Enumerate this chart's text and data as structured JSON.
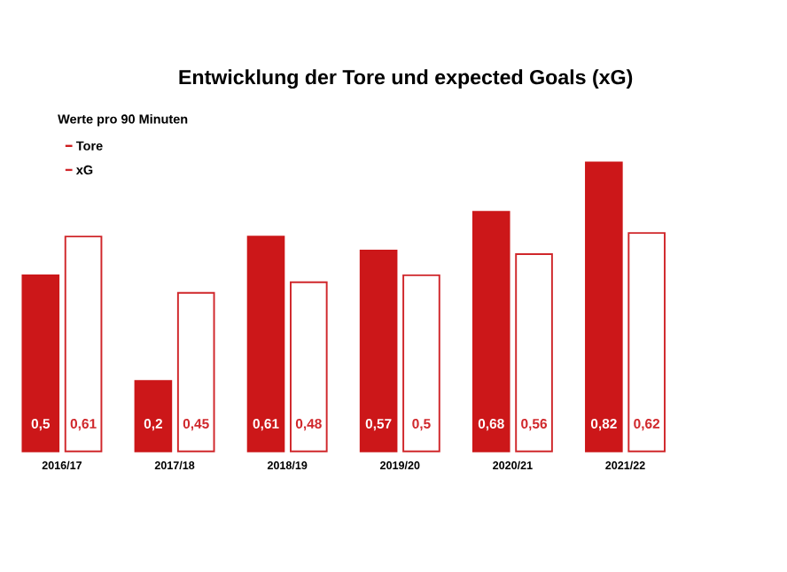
{
  "chart_data": {
    "type": "bar",
    "title": "Entwicklung der Tore und expected Goals (xG)",
    "subtitle": "Werte pro 90 Minuten",
    "categories": [
      "2016/17",
      "2017/18",
      "2018/19",
      "2019/20",
      "2020/21",
      "2021/22"
    ],
    "series": [
      {
        "name": "Tore",
        "color": "#cc1719",
        "values": [
          0.5,
          0.2,
          0.61,
          0.57,
          0.68,
          0.82
        ],
        "value_labels": [
          "0,5",
          "0,2",
          "0,61",
          "0,57",
          "0,68",
          "0,82"
        ]
      },
      {
        "name": "xG",
        "color": "#d0272b",
        "values": [
          0.61,
          0.45,
          0.48,
          0.5,
          0.56,
          0.62
        ],
        "value_labels": [
          "0,61",
          "0,45",
          "0,48",
          "0,5",
          "0,56",
          "0,62"
        ]
      }
    ],
    "legend": "top left"
  }
}
